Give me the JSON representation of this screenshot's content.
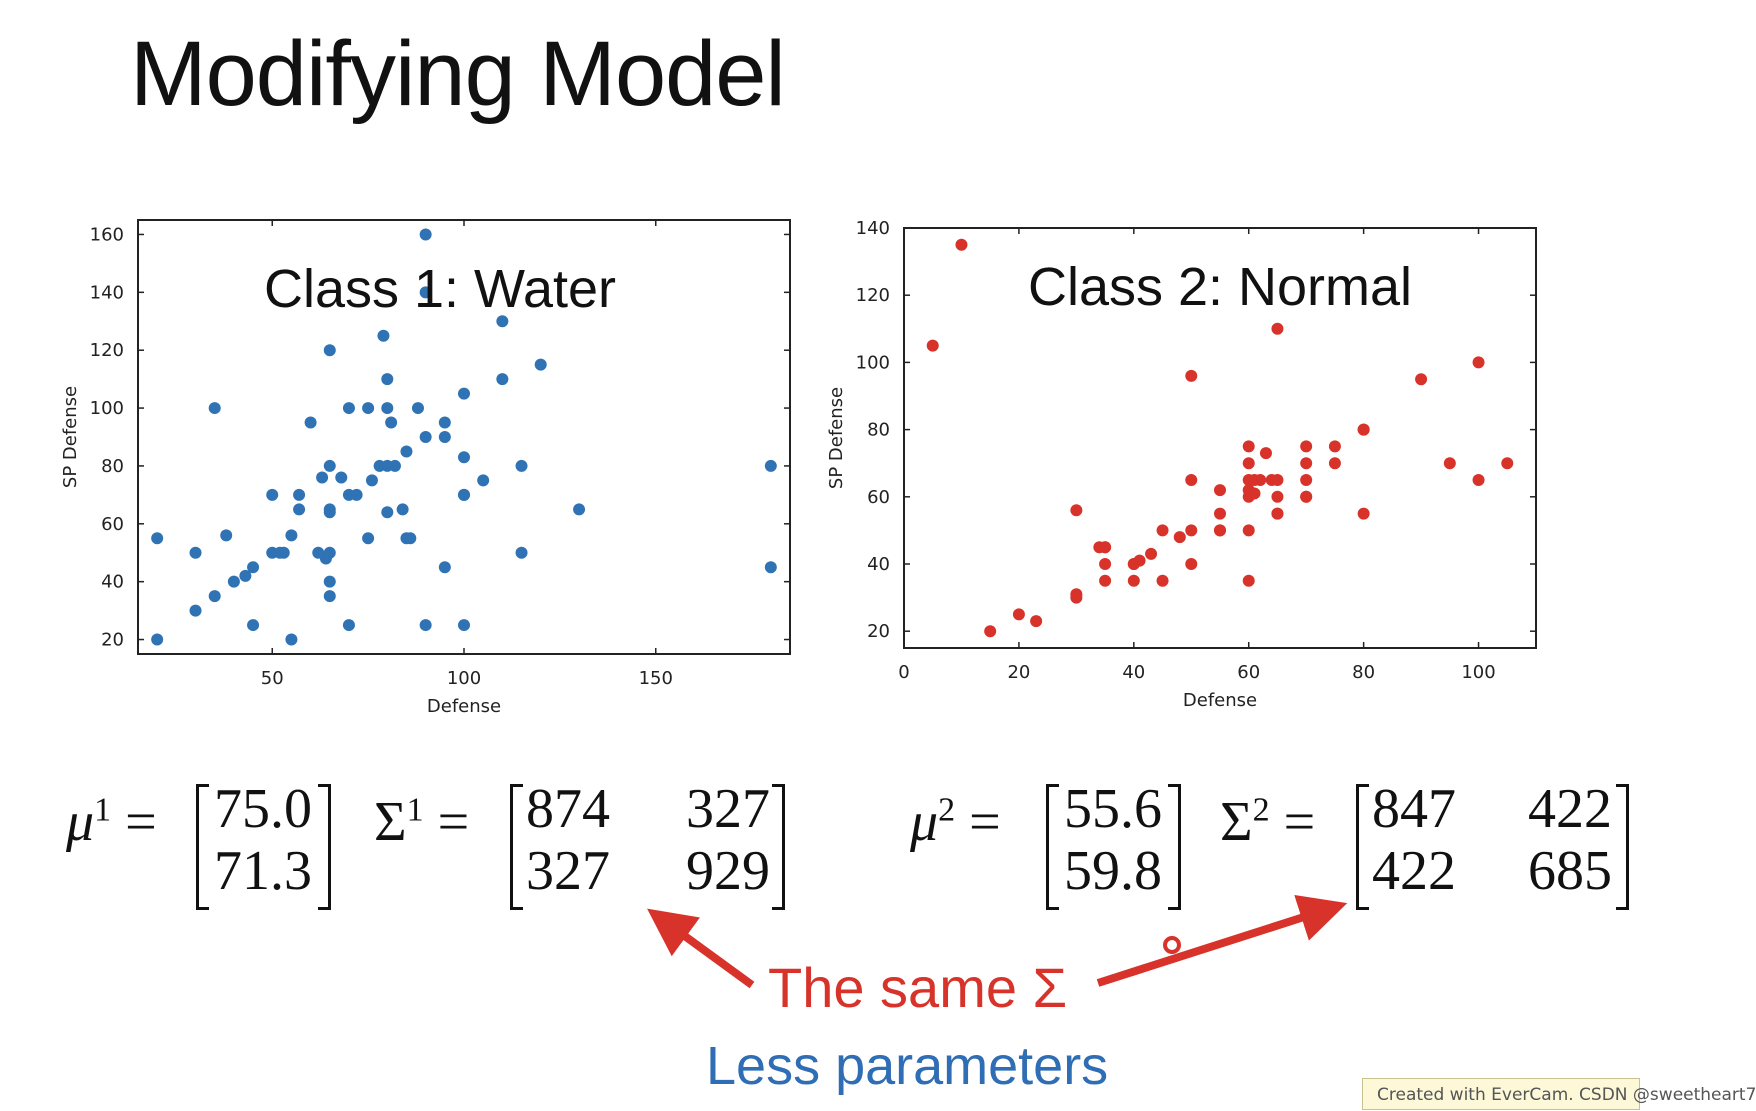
{
  "slide": {
    "title": "Modifying Model",
    "annotation_same": "The same Σ",
    "annotation_less": "Less parameters",
    "watermark": "Created with EverCam. CSDN @sweetheart7"
  },
  "colors": {
    "water": "#2f73b5",
    "normal": "#d8332a",
    "arrow": "#d8332a",
    "less": "#2f6db5"
  },
  "chart_data": [
    {
      "type": "scatter",
      "title": "Class 1: Water",
      "xlabel": "Defense",
      "ylabel": "SP Defense",
      "xlim": [
        15,
        185
      ],
      "ylim": [
        15,
        165
      ],
      "xticks": [
        50,
        100,
        150
      ],
      "yticks": [
        20,
        40,
        60,
        80,
        100,
        120,
        140,
        160
      ],
      "x": [
        20,
        20,
        30,
        30,
        35,
        35,
        38,
        40,
        43,
        45,
        45,
        50,
        50,
        52,
        53,
        55,
        55,
        57,
        57,
        60,
        62,
        63,
        64,
        65,
        65,
        65,
        65,
        65,
        65,
        65,
        68,
        70,
        70,
        70,
        72,
        75,
        75,
        76,
        78,
        79,
        80,
        80,
        80,
        80,
        81,
        82,
        84,
        85,
        85,
        86,
        88,
        90,
        90,
        90,
        90,
        95,
        95,
        95,
        100,
        100,
        100,
        100,
        100,
        105,
        110,
        110,
        115,
        115,
        120,
        130,
        180,
        180
      ],
      "y": [
        55,
        20,
        50,
        30,
        35,
        100,
        56,
        40,
        42,
        45,
        25,
        50,
        70,
        50,
        50,
        56,
        20,
        65,
        70,
        95,
        50,
        76,
        48,
        50,
        120,
        35,
        40,
        80,
        65,
        64,
        76,
        70,
        100,
        25,
        70,
        55,
        100,
        75,
        80,
        125,
        80,
        100,
        110,
        64,
        95,
        80,
        65,
        55,
        85,
        55,
        100,
        160,
        140,
        90,
        25,
        95,
        90,
        45,
        105,
        83,
        25,
        70,
        70,
        75,
        130,
        110,
        80,
        50,
        115,
        65,
        80,
        45
      ]
    },
    {
      "type": "scatter",
      "title": "Class 2: Normal",
      "xlabel": "Defense",
      "ylabel": "SP Defense",
      "xlim": [
        0,
        110
      ],
      "ylim": [
        15,
        140
      ],
      "xticks": [
        0,
        20,
        40,
        60,
        80,
        100
      ],
      "yticks": [
        20,
        40,
        60,
        80,
        100,
        120,
        140
      ],
      "x": [
        5,
        10,
        15,
        20,
        23,
        30,
        30,
        30,
        34,
        35,
        35,
        35,
        35,
        40,
        40,
        40,
        41,
        43,
        45,
        45,
        48,
        50,
        50,
        50,
        50,
        55,
        55,
        55,
        55,
        60,
        60,
        60,
        60,
        60,
        60,
        60,
        61,
        61,
        62,
        63,
        64,
        65,
        65,
        65,
        65,
        65,
        70,
        70,
        70,
        70,
        70,
        75,
        75,
        80,
        80,
        80,
        90,
        95,
        100,
        100,
        105
      ],
      "y": [
        105,
        135,
        20,
        25,
        23,
        31,
        30,
        56,
        45,
        45,
        40,
        35,
        45,
        40,
        40,
        35,
        41,
        43,
        50,
        35,
        48,
        65,
        96,
        50,
        40,
        62,
        55,
        50,
        50,
        35,
        75,
        70,
        60,
        65,
        62,
        50,
        61,
        65,
        65,
        73,
        65,
        55,
        60,
        65,
        110,
        55,
        75,
        70,
        65,
        60,
        60,
        75,
        70,
        80,
        55,
        80,
        95,
        70,
        100,
        65,
        70
      ]
    }
  ],
  "equations": {
    "class1": {
      "mu_symbol": "μ",
      "mu_sup": "1",
      "mu_values": [
        "75.0",
        "71.3"
      ],
      "sigma_symbol": "Σ",
      "sigma_sup": "1",
      "sigma_values": [
        [
          "874",
          "327"
        ],
        [
          "327",
          "929"
        ]
      ]
    },
    "class2": {
      "mu_symbol": "μ",
      "mu_sup": "2",
      "mu_values": [
        "55.6",
        "59.8"
      ],
      "sigma_symbol": "Σ",
      "sigma_sup": "2",
      "sigma_values": [
        [
          "847",
          "422"
        ],
        [
          "422",
          "685"
        ]
      ]
    },
    "equals": "="
  }
}
